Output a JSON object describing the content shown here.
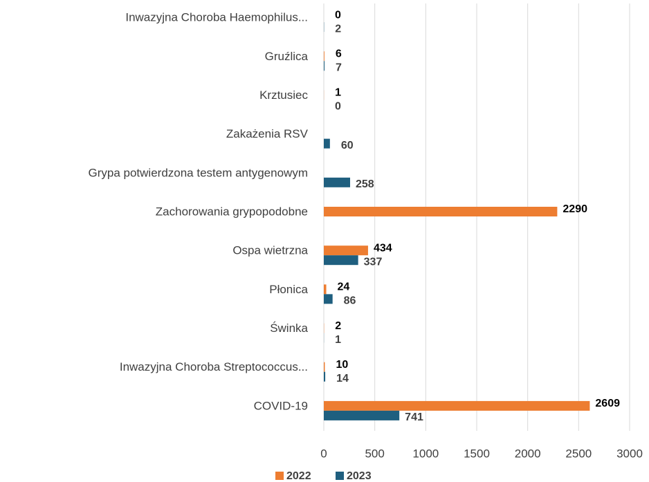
{
  "chart_data": {
    "type": "hbar",
    "categories": [
      "Inwazyjna Choroba  Haemophilus...",
      "Gruźlica",
      "Krztusiec",
      "Zakażenia RSV",
      "Grypa potwierdzona testem antygenowym",
      "Zachorowania grypopodobne",
      "Ospa wietrzna",
      "Płonica",
      "Świnka",
      "Inwazyjna Choroba Streptococcus...",
      "COVID-19"
    ],
    "series": [
      {
        "name": "2022",
        "color": "#ed7d31",
        "label_color": "#000000",
        "values": [
          0,
          6,
          1,
          null,
          null,
          2290,
          434,
          24,
          2,
          10,
          2609
        ]
      },
      {
        "name": "2023",
        "color": "#1f5f7f",
        "label_color": "#404040",
        "values": [
          2,
          7,
          0,
          60,
          258,
          null,
          337,
          86,
          1,
          14,
          741
        ]
      }
    ],
    "xlim": [
      0,
      3000
    ],
    "xticks": [
      0,
      500,
      1000,
      1500,
      2000,
      2500,
      3000
    ],
    "grid": true,
    "legend": "bottom"
  }
}
